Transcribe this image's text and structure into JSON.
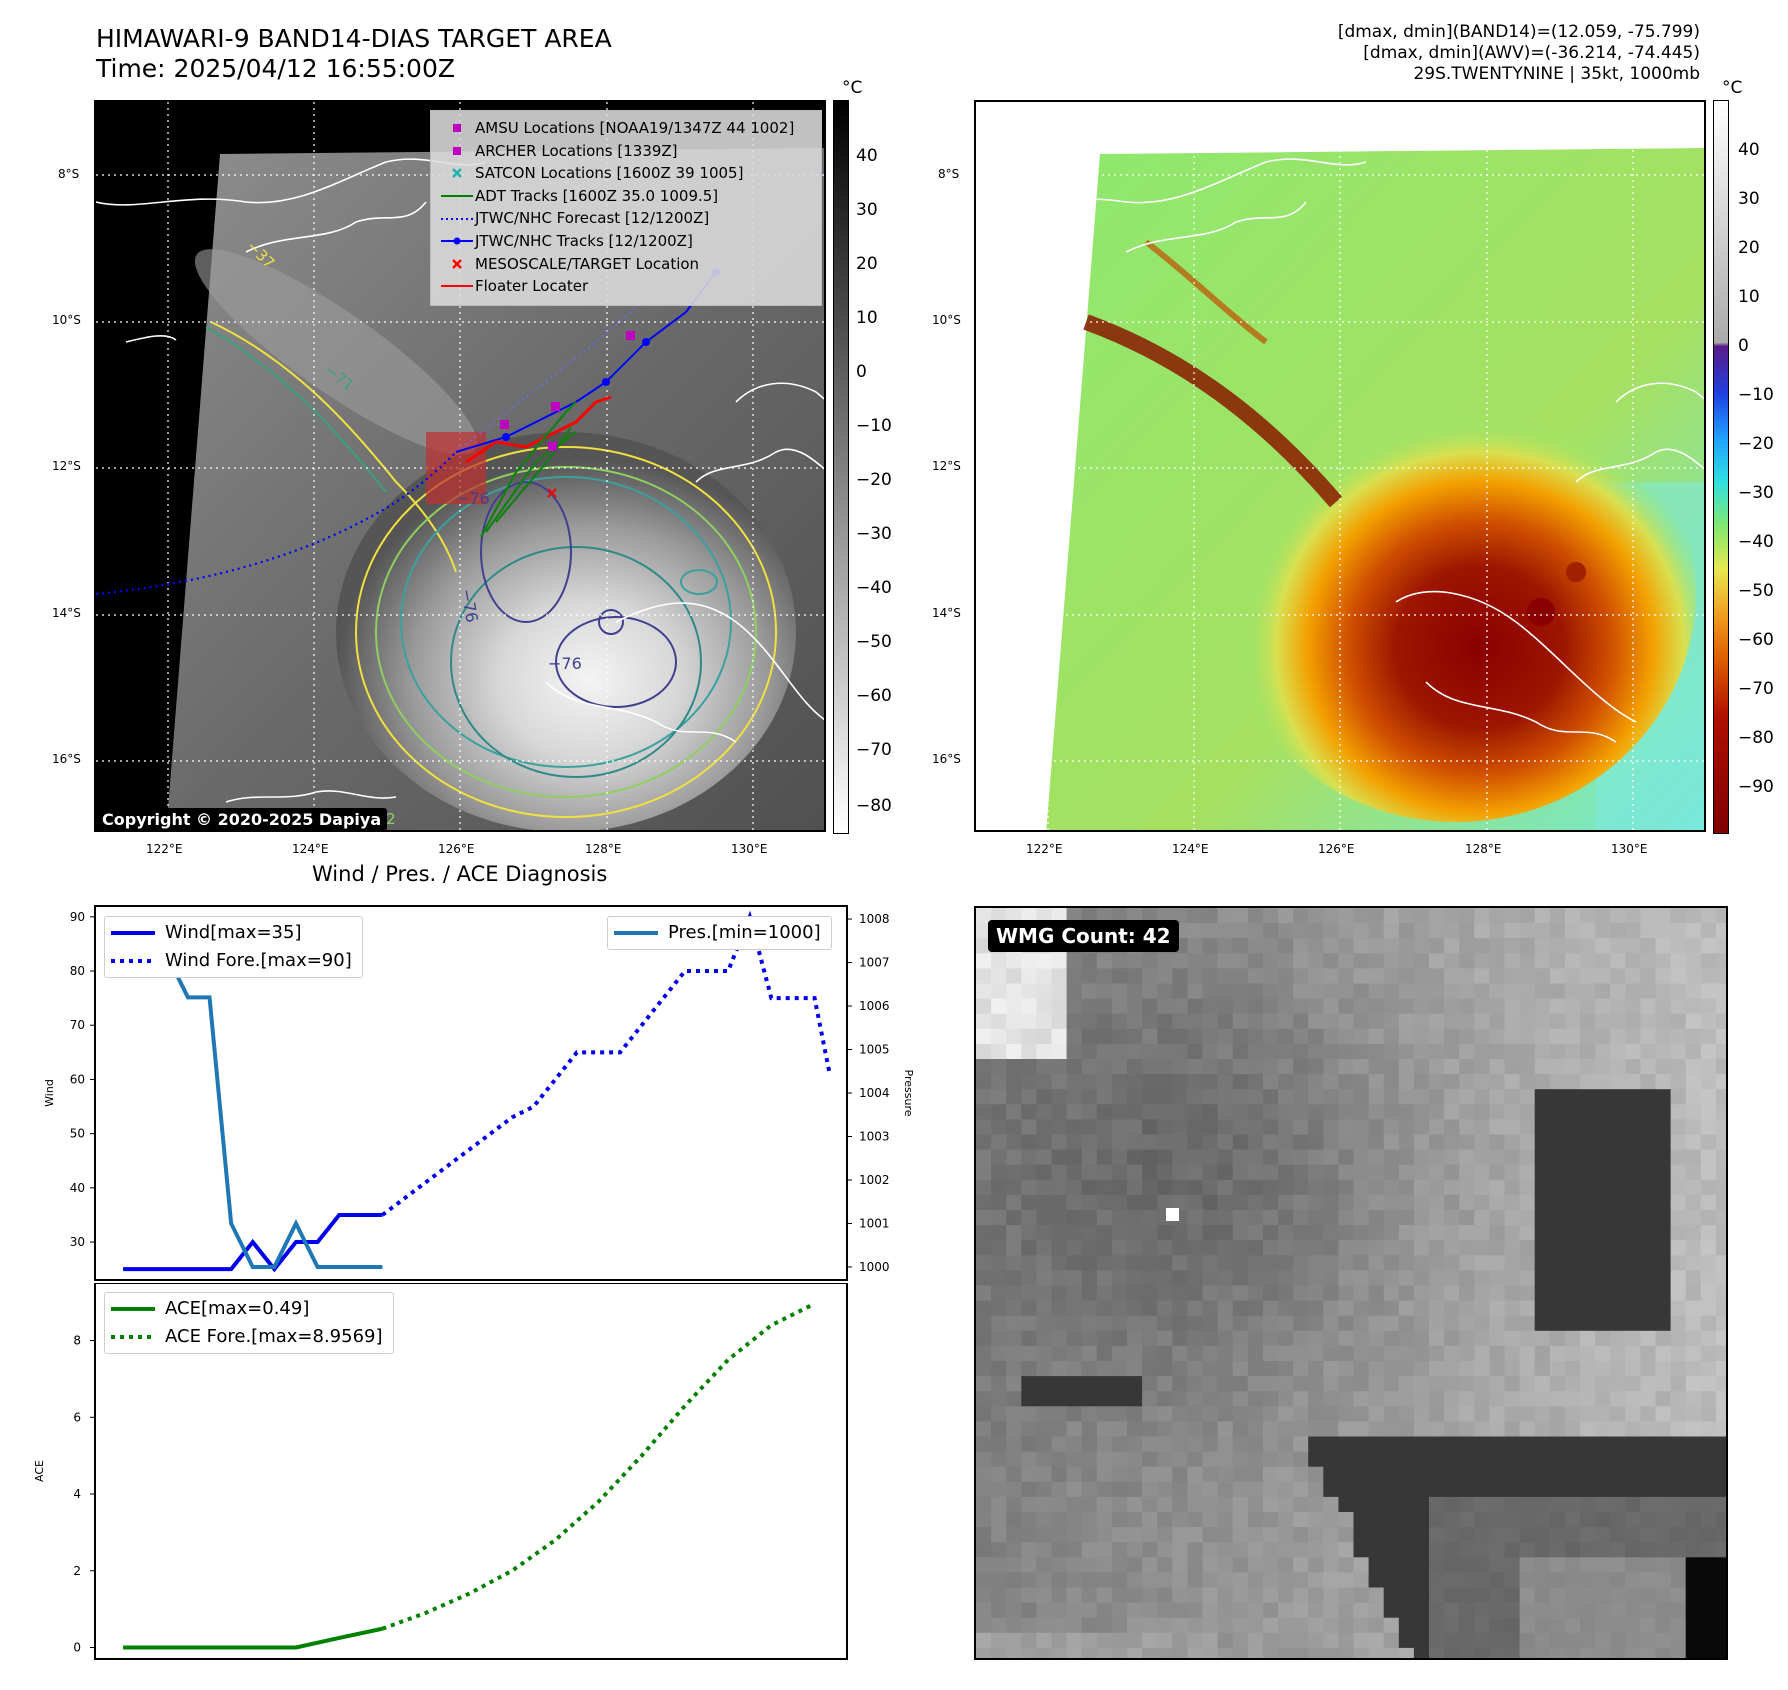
{
  "header": {
    "title_line1": "HIMAWARI-9 BAND14-DIAS TARGET AREA",
    "title_line2": "Time: 2025/04/12 16:55:00Z",
    "info_line1": "[dmax, dmin](BAND14)=(12.059, -75.799)",
    "info_line2": "[dmax, dmin](AWV)=(-36.214, -74.445)",
    "info_line3": "29S.TWENTYNINE | 35kt, 1000mb"
  },
  "map": {
    "lat_labels": [
      "8°S",
      "10°S",
      "12°S",
      "14°S",
      "16°S"
    ],
    "lon_labels": [
      "122°E",
      "124°E",
      "126°E",
      "128°E",
      "130°E"
    ],
    "contour_labels": [
      "−76",
      "−76",
      "−76",
      "−42",
      "−37",
      "−71"
    ],
    "copyright": "Copyright © 2020-2025 Dapiya",
    "legend": [
      {
        "label": "AMSU Locations [NOAA19/1347Z 44 1002]",
        "marker": "square",
        "color": "#c000c0"
      },
      {
        "label": "ARCHER Locations [1339Z]",
        "marker": "square",
        "color": "#c000c0"
      },
      {
        "label": "SATCON Locations [1600Z 39 1005]",
        "marker": "x",
        "color": "#20b0b0"
      },
      {
        "label": "ADT Tracks [1600Z 35.0 1009.5]",
        "marker": "line",
        "color": "#008000"
      },
      {
        "label": "JTWC/NHC Forecast [12/1200Z]",
        "marker": "dotted",
        "color": "#0000ff"
      },
      {
        "label": "JTWC/NHC Tracks [12/1200Z]",
        "marker": "line-dot",
        "color": "#0000ff"
      },
      {
        "label": "MESOSCALE/TARGET Location",
        "marker": "x",
        "color": "#ff0000"
      },
      {
        "label": "Floater Locater",
        "marker": "line",
        "color": "#ff0000"
      }
    ]
  },
  "colorbar_left": {
    "unit": "°C",
    "ticks": [
      "40",
      "30",
      "20",
      "10",
      "0",
      "−10",
      "−20",
      "−30",
      "−40",
      "−50",
      "−60",
      "−70",
      "−80"
    ]
  },
  "colorbar_right": {
    "unit": "°C",
    "ticks": [
      "40",
      "30",
      "20",
      "10",
      "0",
      "−10",
      "−20",
      "−30",
      "−40",
      "−50",
      "−60",
      "−70",
      "−80",
      "−90"
    ]
  },
  "wmg": {
    "badge": "WMG Count: 42"
  },
  "chart_data": [
    {
      "type": "line",
      "title": "Wind / Pres. / ACE Diagnosis",
      "ylabel": "Wind",
      "y2label": "Pressure",
      "ylim": [
        23,
        92
      ],
      "y2lim": [
        999.7,
        1008.3
      ],
      "yticks": [
        30,
        40,
        50,
        60,
        70,
        80,
        90
      ],
      "y2ticks": [
        1000,
        1001,
        1002,
        1003,
        1004,
        1005,
        1006,
        1007,
        1008
      ],
      "series": [
        {
          "name": "Wind[max=35]",
          "axis": "left",
          "style": "solid",
          "color": "#0000ee",
          "x": [
            0,
            1,
            2,
            3,
            4,
            5,
            6,
            7,
            8,
            9,
            10,
            11,
            12
          ],
          "y": [
            25,
            25,
            25,
            25,
            25,
            25,
            30,
            25,
            30,
            30,
            35,
            35,
            35
          ]
        },
        {
          "name": "Wind Fore.[max=90]",
          "axis": "left",
          "style": "dotted",
          "color": "#0000ee",
          "x": [
            12,
            13,
            14,
            15,
            16,
            17,
            18,
            19,
            20,
            21,
            22,
            23,
            24,
            25,
            26,
            27,
            28,
            29,
            30,
            31,
            32
          ],
          "y": [
            35,
            38,
            41,
            44,
            47,
            50,
            53,
            55,
            60,
            65,
            65,
            65,
            70,
            75,
            80,
            80,
            80,
            90,
            75,
            75,
            75
          ]
        },
        {
          "name": "Pres.[min=1000]",
          "axis": "right",
          "style": "solid",
          "color": "#1f77b4",
          "x": [
            0,
            1,
            2,
            3,
            4,
            5,
            6,
            7,
            8,
            9,
            10,
            11,
            12
          ],
          "y": [
            1008,
            1007.2,
            1007.2,
            1006.2,
            1006.2,
            1001,
            1000,
            1000,
            1001,
            1000,
            1000,
            1000,
            1000
          ]
        }
      ],
      "x_extra": {
        "wind_fore_end": 32.7,
        "wind_fore_end_value": 61
      }
    },
    {
      "type": "line",
      "ylabel": "ACE",
      "ylim": [
        -0.3,
        9.5
      ],
      "yticks": [
        0,
        2,
        4,
        6,
        8
      ],
      "series": [
        {
          "name": "ACE[max=0.49]",
          "style": "solid",
          "color": "#008000",
          "x": [
            0,
            2,
            4,
            6,
            8,
            10,
            12
          ],
          "y": [
            0,
            0,
            0,
            0,
            0,
            0.25,
            0.49
          ]
        },
        {
          "name": "ACE Fore.[max=8.9569]",
          "style": "dotted",
          "color": "#008000",
          "x": [
            12,
            14,
            16,
            18,
            20,
            22,
            24,
            26,
            28,
            30,
            32
          ],
          "y": [
            0.49,
            0.9,
            1.4,
            2.0,
            2.8,
            3.8,
            5.0,
            6.3,
            7.5,
            8.4,
            8.96
          ]
        }
      ]
    }
  ]
}
